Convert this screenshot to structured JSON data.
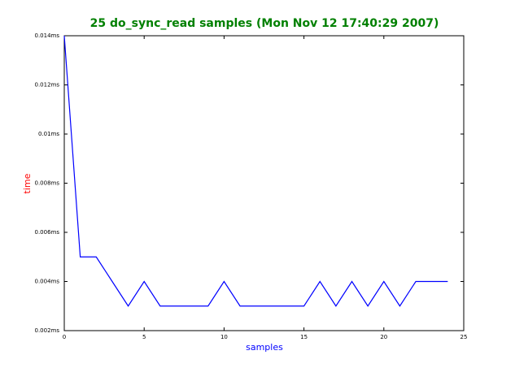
{
  "chart_data": {
    "type": "line",
    "title": "25 do_sync_read samples (Mon Nov 12 17:40:29 2007)",
    "x_label": "samples",
    "y_label": "time",
    "x": [
      0,
      1,
      2,
      3,
      4,
      5,
      6,
      7,
      8,
      9,
      10,
      11,
      12,
      13,
      14,
      15,
      16,
      17,
      18,
      19,
      20,
      21,
      22,
      23,
      24
    ],
    "series": [
      {
        "color": "#0000ff",
        "values": [
          0.014,
          0.005,
          0.005,
          0.004,
          0.003,
          0.004,
          0.003,
          0.003,
          0.003,
          0.003,
          0.004,
          0.003,
          0.003,
          0.003,
          0.003,
          0.003,
          0.004,
          0.003,
          0.004,
          0.003,
          0.004,
          0.003,
          0.004,
          0.004,
          0.004
        ]
      }
    ],
    "xlim": [
      0,
      25
    ],
    "xticks": [
      0,
      5,
      10,
      15,
      20,
      25
    ],
    "ylim": [
      0.002,
      0.014
    ],
    "yticks": [
      {
        "value": 0.002,
        "label": "0.002ms"
      },
      {
        "value": 0.004,
        "label": "0.004ms"
      },
      {
        "value": 0.006,
        "label": "0.006ms"
      },
      {
        "value": 0.008,
        "label": "0.008ms"
      },
      {
        "value": 0.01,
        "label": "0.01ms"
      },
      {
        "value": 0.012,
        "label": "0.012ms"
      },
      {
        "value": 0.014,
        "label": "0.014ms"
      }
    ],
    "title_color": "#008000",
    "x_label_color": "#0000ff",
    "y_label_color": "#ff0000"
  }
}
